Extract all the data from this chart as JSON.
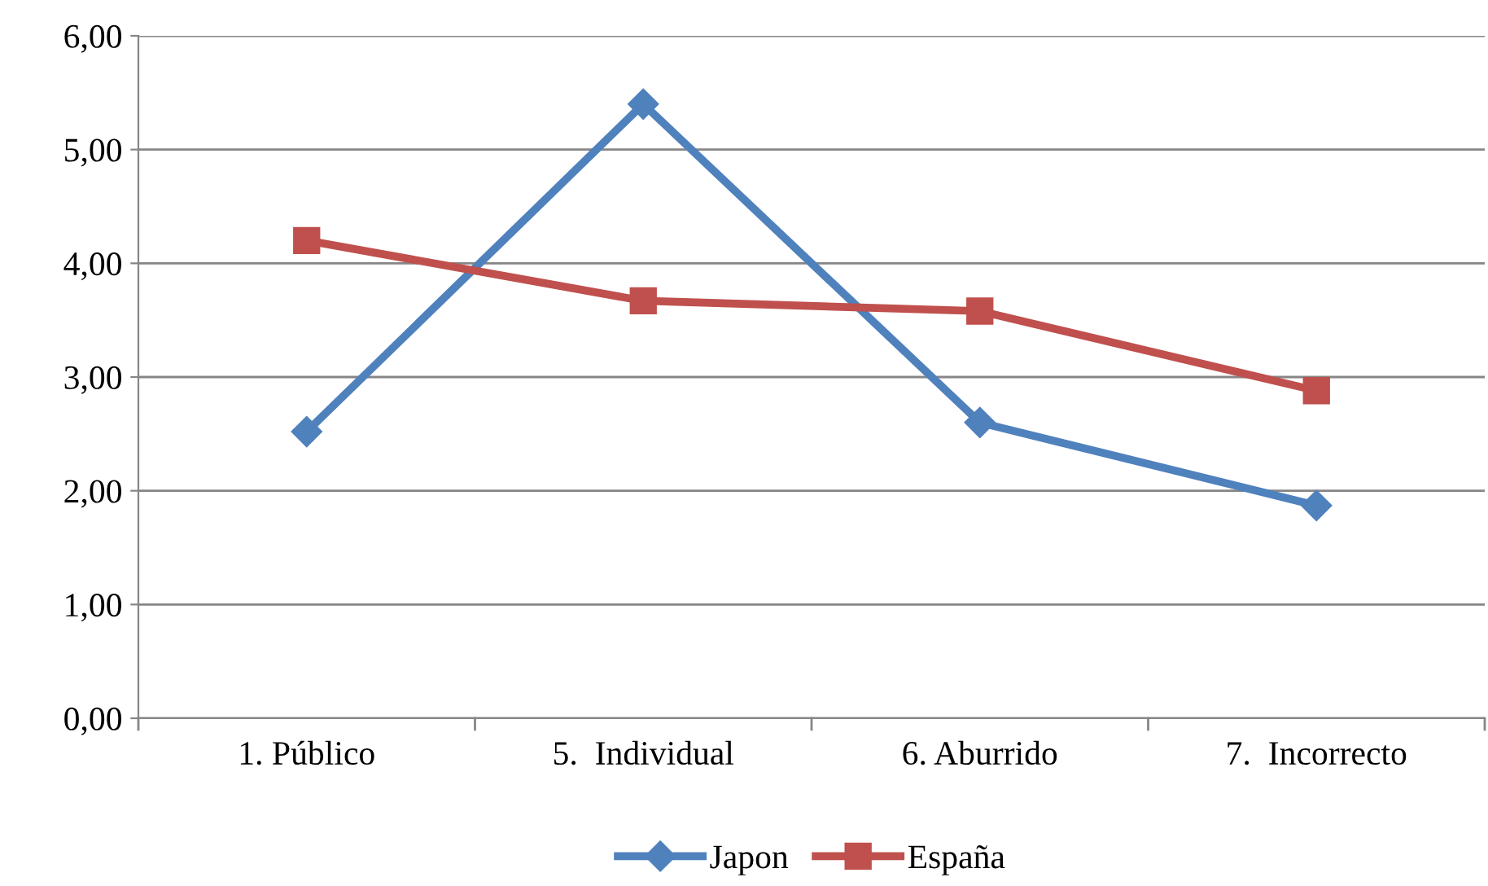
{
  "chart_data": {
    "type": "line",
    "categories": [
      "1. Público",
      "5.  Individual",
      "6. Aburrido",
      "7.  Incorrecto"
    ],
    "series": [
      {
        "name": "Japon",
        "color": "#4f81bd",
        "marker": "diamond",
        "values": [
          2.52,
          5.4,
          2.6,
          1.87
        ]
      },
      {
        "name": "España",
        "color": "#c0504d",
        "marker": "square",
        "values": [
          4.2,
          3.67,
          3.58,
          2.88
        ]
      }
    ],
    "ylim": [
      0,
      6
    ],
    "yticks": [
      {
        "value": 0,
        "label": "0,00"
      },
      {
        "value": 1,
        "label": "1,00"
      },
      {
        "value": 2,
        "label": "2,00"
      },
      {
        "value": 3,
        "label": "3,00"
      },
      {
        "value": 4,
        "label": "4,00"
      },
      {
        "value": 5,
        "label": "5,00"
      },
      {
        "value": 6,
        "label": "6,00"
      }
    ],
    "grid": "y",
    "legend": "bottom",
    "line_style": "solid"
  }
}
